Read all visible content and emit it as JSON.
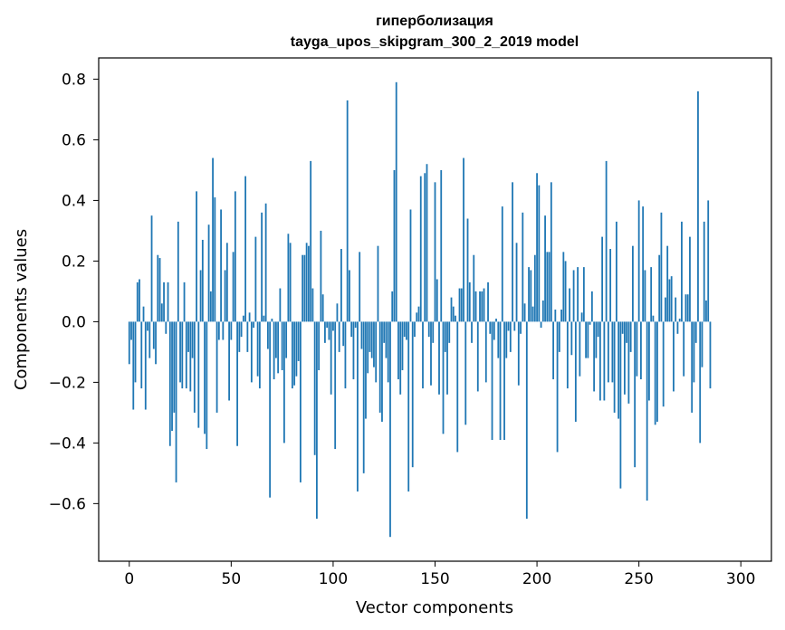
{
  "chart_data": {
    "type": "bar",
    "title": "гиперболизация",
    "subtitle": "tayga_upos_skipgram_300_2_2019 model",
    "xlabel": "Vector components",
    "ylabel": "Components values",
    "xlim": [
      -15,
      315
    ],
    "ylim": [
      -0.79,
      0.87
    ],
    "xticks": [
      0,
      50,
      100,
      150,
      200,
      250,
      300
    ],
    "xtick_labels": [
      "0",
      "50",
      "100",
      "150",
      "200",
      "250",
      "300"
    ],
    "yticks": [
      -0.6,
      -0.4,
      -0.2,
      0.0,
      0.2,
      0.4,
      0.6,
      0.8
    ],
    "ytick_labels": [
      "−0.6",
      "−0.4",
      "−0.2",
      "0.0",
      "0.2",
      "0.4",
      "0.6",
      "0.8"
    ],
    "bar_color": "#1f77b4",
    "x_start": 0,
    "values": [
      -0.14,
      -0.06,
      -0.29,
      -0.2,
      0.13,
      0.14,
      -0.22,
      0.05,
      -0.29,
      -0.03,
      -0.12,
      0.35,
      -0.09,
      -0.14,
      0.22,
      0.21,
      0.06,
      0.13,
      -0.04,
      0.13,
      -0.41,
      -0.36,
      -0.3,
      -0.53,
      0.33,
      -0.2,
      -0.22,
      0.13,
      -0.22,
      -0.1,
      -0.23,
      -0.12,
      -0.3,
      0.43,
      -0.35,
      0.17,
      0.27,
      -0.37,
      -0.42,
      0.32,
      0.1,
      0.54,
      0.41,
      -0.3,
      -0.06,
      0.37,
      -0.06,
      0.17,
      0.26,
      -0.26,
      -0.06,
      0.23,
      0.43,
      -0.41,
      -0.1,
      -0.05,
      0.02,
      0.48,
      -0.1,
      0.03,
      -0.2,
      -0.02,
      0.28,
      -0.18,
      -0.22,
      0.36,
      0.02,
      0.39,
      -0.09,
      -0.58,
      0.01,
      -0.19,
      -0.12,
      -0.17,
      0.11,
      -0.16,
      -0.4,
      -0.12,
      0.29,
      0.26,
      -0.22,
      -0.21,
      -0.18,
      -0.13,
      -0.53,
      0.22,
      0.22,
      0.26,
      0.25,
      0.53,
      0.11,
      -0.44,
      -0.65,
      -0.16,
      0.3,
      0.09,
      -0.07,
      -0.02,
      -0.06,
      -0.24,
      -0.03,
      -0.42,
      0.06,
      -0.1,
      0.24,
      -0.08,
      -0.22,
      0.73,
      0.17,
      -0.05,
      -0.19,
      -0.02,
      -0.56,
      0.23,
      -0.09,
      -0.5,
      -0.32,
      -0.17,
      -0.1,
      -0.12,
      -0.15,
      -0.2,
      0.25,
      -0.3,
      -0.33,
      -0.07,
      -0.12,
      -0.2,
      -0.71,
      0.1,
      0.5,
      0.79,
      -0.19,
      -0.24,
      -0.16,
      -0.05,
      -0.06,
      -0.56,
      0.37,
      -0.48,
      -0.05,
      0.03,
      0.05,
      0.48,
      -0.22,
      0.49,
      0.52,
      -0.05,
      -0.21,
      -0.07,
      0.46,
      0.14,
      -0.24,
      0.5,
      -0.37,
      -0.1,
      -0.24,
      -0.07,
      0.08,
      0.05,
      0.02,
      -0.43,
      0.11,
      0.11,
      0.54,
      -0.34,
      0.34,
      0.13,
      -0.07,
      0.22,
      0.1,
      -0.23,
      0.1,
      0.1,
      0.11,
      -0.2,
      0.13,
      -0.04,
      -0.39,
      -0.06,
      0.01,
      -0.12,
      -0.39,
      0.38,
      -0.39,
      -0.12,
      -0.03,
      -0.1,
      0.46,
      -0.03,
      0.26,
      -0.21,
      -0.04,
      0.36,
      0.06,
      -0.65,
      0.18,
      0.17,
      0.05,
      0.22,
      0.49,
      0.45,
      -0.02,
      0.07,
      0.35,
      0.23,
      0.23,
      0.46,
      -0.19,
      0.04,
      -0.43,
      -0.1,
      0.04,
      0.23,
      0.2,
      -0.22,
      0.11,
      -0.11,
      0.17,
      -0.33,
      0.18,
      -0.18,
      0.03,
      0.18,
      -0.12,
      -0.12,
      -0.01,
      0.1,
      -0.23,
      -0.12,
      -0.05,
      -0.26,
      0.28,
      -0.26,
      0.53,
      -0.2,
      0.24,
      -0.2,
      -0.3,
      0.33,
      -0.32,
      -0.55,
      -0.04,
      -0.24,
      -0.07,
      -0.27,
      -0.1,
      0.25,
      -0.48,
      -0.18,
      0.4,
      -0.19,
      0.38,
      0.17,
      -0.59,
      -0.26,
      0.18,
      0.02,
      -0.34,
      -0.33,
      0.22,
      0.36,
      -0.28,
      0.08,
      0.25,
      0.14,
      0.15,
      -0.23,
      0.08,
      -0.04,
      0.01,
      0.33,
      -0.18,
      0.09,
      0.09,
      0.28,
      -0.3,
      -0.2,
      -0.07,
      0.76,
      -0.4,
      -0.15,
      0.33,
      0.07,
      0.4,
      -0.22
    ]
  }
}
